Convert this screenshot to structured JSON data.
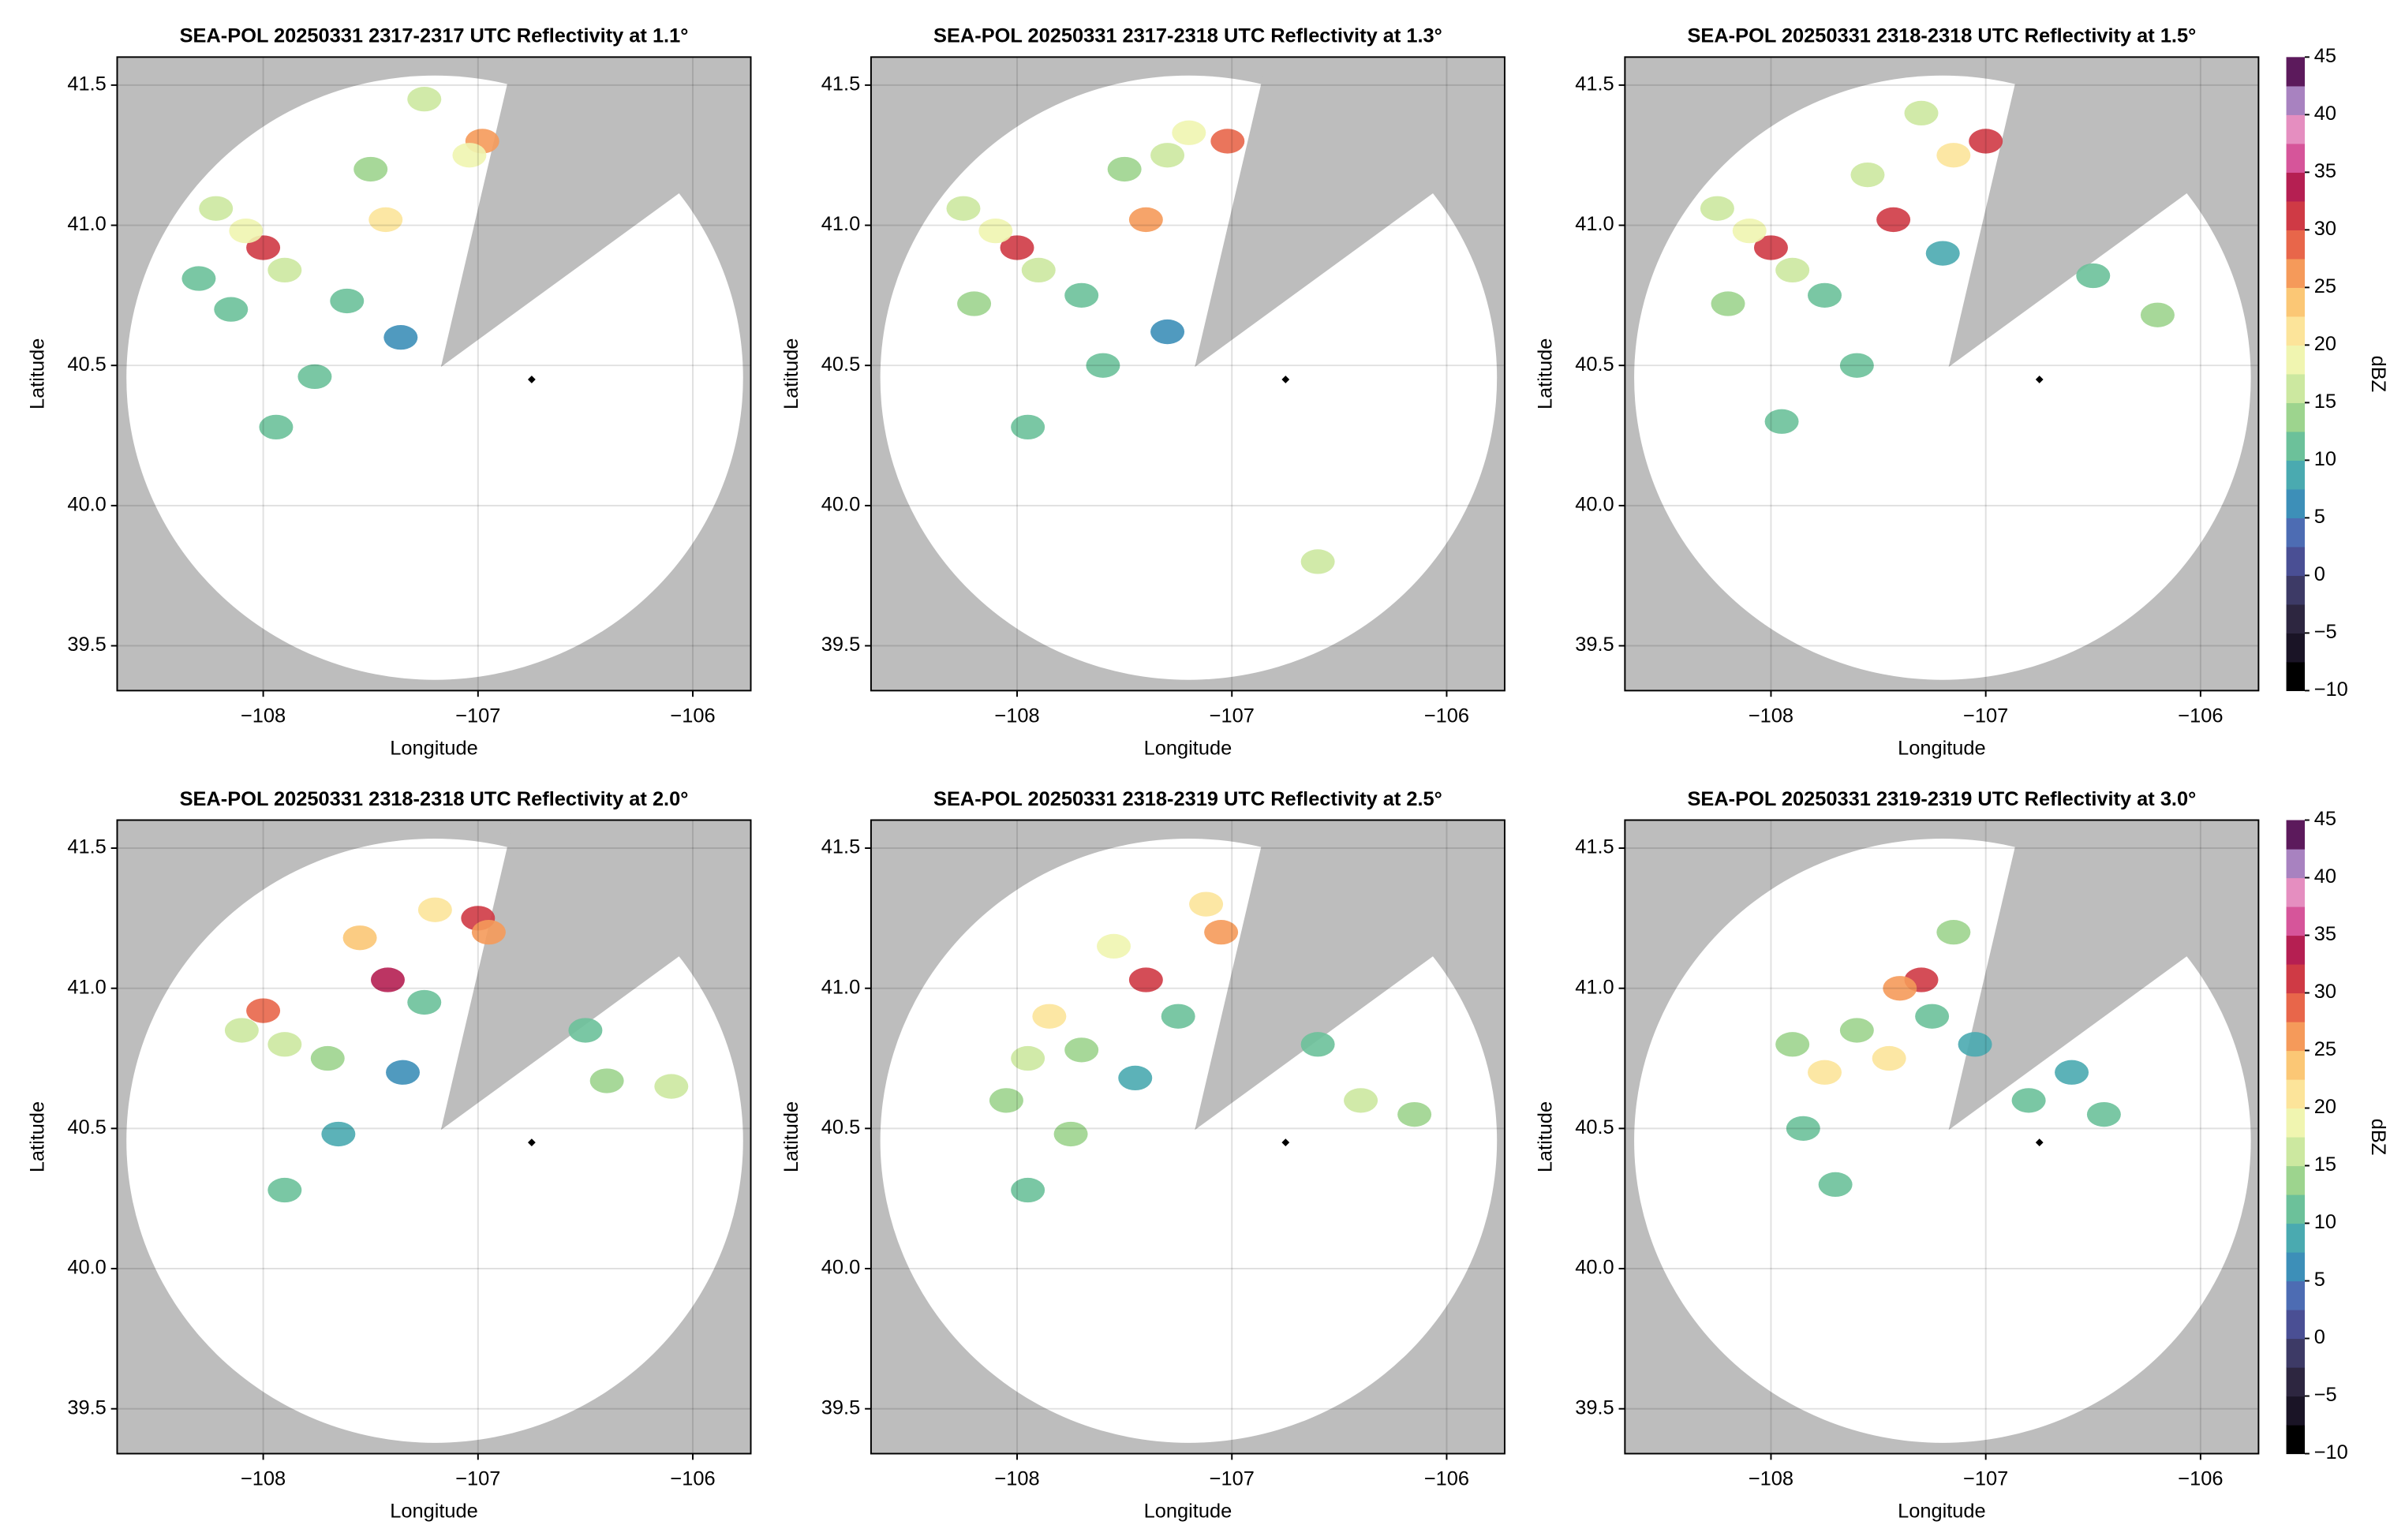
{
  "chart_data": [
    {
      "type": "radar",
      "title": "SEA-POL 20250331 2317-2317 UTC Reflectivity at 1.1°",
      "xlabel": "Longitude",
      "ylabel": "Latitude",
      "xlim": [
        -108.68,
        -105.73
      ],
      "ylim": [
        39.34,
        41.6
      ],
      "xticks": [
        {
          "value": -108,
          "label": "−108"
        },
        {
          "value": -107,
          "label": "−107"
        },
        {
          "value": -106,
          "label": "−106"
        }
      ],
      "yticks": [
        39.5,
        {
          "value": 40,
          "label": "40.0"
        },
        40.5,
        {
          "value": 41,
          "label": "41.0"
        },
        41.5
      ],
      "grid": true,
      "marker": {
        "lon": -106.75,
        "lat": 40.45
      },
      "cells": {
        "lon": [
          -108.0,
          -108.08,
          -108.22,
          -107.9,
          -108.3,
          -106.98,
          -107.04,
          -107.25,
          -107.43,
          -107.5,
          -107.76,
          -107.94,
          -107.36,
          -107.61,
          -108.15
        ],
        "lat": [
          40.92,
          40.98,
          41.06,
          40.84,
          40.81,
          41.3,
          41.25,
          41.45,
          41.02,
          41.2,
          40.46,
          40.28,
          40.6,
          40.73,
          40.7
        ],
        "dbz": [
          30,
          18,
          15,
          15,
          12,
          25,
          18,
          15,
          22,
          14,
          10,
          12,
          5,
          10,
          11
        ]
      }
    },
    {
      "type": "radar",
      "title": "SEA-POL 20250331 2317-2318 UTC Reflectivity at 1.3°",
      "xlabel": "Longitude",
      "ylabel": "Latitude",
      "xlim": [
        -108.68,
        -105.73
      ],
      "ylim": [
        39.34,
        41.6
      ],
      "xticks": [
        {
          "value": -108,
          "label": "−108"
        },
        {
          "value": -107,
          "label": "−107"
        },
        {
          "value": -106,
          "label": "−106"
        }
      ],
      "yticks": [
        39.5,
        {
          "value": 40,
          "label": "40.0"
        },
        40.5,
        {
          "value": 41,
          "label": "41.0"
        },
        41.5
      ],
      "grid": true,
      "marker": {
        "lon": -106.75,
        "lat": 40.45
      },
      "cells": {
        "lon": [
          -108.0,
          -108.1,
          -108.25,
          -107.9,
          -107.02,
          -107.2,
          -107.3,
          -107.4,
          -107.5,
          -107.7,
          -107.95,
          -107.6,
          -107.3,
          -106.6,
          -108.2
        ],
        "lat": [
          40.92,
          40.98,
          41.06,
          40.84,
          41.3,
          41.33,
          41.25,
          41.02,
          41.2,
          40.75,
          40.28,
          40.5,
          40.62,
          39.8,
          40.72
        ],
        "dbz": [
          30,
          18,
          15,
          16,
          28,
          18,
          17,
          26,
          14,
          11,
          12,
          10,
          6,
          15,
          13
        ]
      }
    },
    {
      "type": "radar",
      "title": "SEA-POL 20250331 2318-2318 UTC Reflectivity at 1.5°",
      "xlabel": "Longitude",
      "ylabel": "Latitude",
      "xlim": [
        -108.68,
        -105.73
      ],
      "ylim": [
        39.34,
        41.6
      ],
      "xticks": [
        {
          "value": -108,
          "label": "−108"
        },
        {
          "value": -107,
          "label": "−107"
        },
        {
          "value": -106,
          "label": "−106"
        }
      ],
      "yticks": [
        39.5,
        {
          "value": 40,
          "label": "40.0"
        },
        40.5,
        {
          "value": 41,
          "label": "41.0"
        },
        41.5
      ],
      "grid": true,
      "marker": {
        "lon": -106.75,
        "lat": 40.45
      },
      "cells": {
        "lon": [
          -108.0,
          -108.1,
          -108.25,
          -107.9,
          -107.0,
          -107.15,
          -107.3,
          -107.43,
          -107.55,
          -107.75,
          -107.95,
          -107.6,
          -106.2,
          -106.5,
          -108.2,
          -107.2
        ],
        "lat": [
          40.92,
          40.98,
          41.06,
          40.84,
          41.3,
          41.25,
          41.4,
          41.02,
          41.18,
          40.75,
          40.3,
          40.5,
          40.68,
          40.82,
          40.72,
          40.9
        ],
        "dbz": [
          30,
          18,
          15,
          16,
          30,
          22,
          17,
          32,
          15,
          11,
          12,
          10,
          14,
          12,
          13,
          9
        ]
      },
      "colorbar": {
        "label": "dBZ",
        "lim": [
          -10,
          45
        ],
        "ticks": [
          {
            "value": -10,
            "label": "−10"
          },
          {
            "value": -5,
            "label": "−5"
          },
          0,
          5,
          10,
          15,
          20,
          25,
          30,
          35,
          40,
          45
        ],
        "colors": [
          "#000000",
          "#1a1426",
          "#2d2640",
          "#3d3a66",
          "#4a4f94",
          "#4d6cb3",
          "#3d8fb8",
          "#4aaab0",
          "#6cc19a",
          "#9dd48e",
          "#cce8a0",
          "#f0f5b0",
          "#fce49a",
          "#fbc775",
          "#f59a5a",
          "#e8664a",
          "#cf3a45",
          "#b51f52",
          "#d6559a",
          "#e58ec0",
          "#a882c0",
          "#5c1a5c"
        ]
      }
    },
    {
      "type": "radar",
      "title": "SEA-POL 20250331 2318-2318 UTC Reflectivity at 2.0°",
      "xlabel": "Longitude",
      "ylabel": "Latitude",
      "xlim": [
        -108.68,
        -105.73
      ],
      "ylim": [
        39.34,
        41.6
      ],
      "xticks": [
        {
          "value": -108,
          "label": "−108"
        },
        {
          "value": -107,
          "label": "−107"
        },
        {
          "value": -106,
          "label": "−106"
        }
      ],
      "yticks": [
        39.5,
        {
          "value": 40,
          "label": "40.0"
        },
        40.5,
        {
          "value": 41,
          "label": "41.0"
        },
        41.5
      ],
      "grid": true,
      "marker": {
        "lon": -106.75,
        "lat": 40.45
      },
      "cells": {
        "lon": [
          -107.0,
          -106.95,
          -107.2,
          -107.42,
          -107.55,
          -108.0,
          -107.9,
          -108.1,
          -107.7,
          -106.4,
          -106.1,
          -106.5,
          -107.9,
          -107.65,
          -107.35,
          -107.25
        ],
        "lat": [
          41.25,
          41.2,
          41.28,
          41.03,
          41.18,
          40.92,
          40.8,
          40.85,
          40.75,
          40.67,
          40.65,
          40.85,
          40.28,
          40.48,
          40.7,
          40.95
        ],
        "dbz": [
          30,
          26,
          22,
          33,
          24,
          28,
          17,
          17,
          14,
          14,
          15,
          12,
          11,
          9,
          6,
          12
        ]
      }
    },
    {
      "type": "radar",
      "title": "SEA-POL 20250331 2318-2319 UTC Reflectivity at 2.5°",
      "xlabel": "Longitude",
      "ylabel": "Latitude",
      "xlim": [
        -108.68,
        -105.73
      ],
      "ylim": [
        39.34,
        41.6
      ],
      "xticks": [
        {
          "value": -108,
          "label": "−108"
        },
        {
          "value": -107,
          "label": "−107"
        },
        {
          "value": -106,
          "label": "−106"
        }
      ],
      "yticks": [
        39.5,
        {
          "value": 40,
          "label": "40.0"
        },
        40.5,
        {
          "value": 41,
          "label": "41.0"
        },
        41.5
      ],
      "grid": true,
      "marker": {
        "lon": -106.75,
        "lat": 40.45
      },
      "cells": {
        "lon": [
          -107.05,
          -107.12,
          -107.4,
          -107.55,
          -107.85,
          -107.95,
          -108.05,
          -107.7,
          -106.4,
          -106.15,
          -106.6,
          -107.95,
          -107.75,
          -107.45,
          -107.25
        ],
        "lat": [
          41.2,
          41.3,
          41.03,
          41.15,
          40.9,
          40.75,
          40.6,
          40.78,
          40.6,
          40.55,
          40.8,
          40.28,
          40.48,
          40.68,
          40.9
        ],
        "dbz": [
          27,
          22,
          32,
          18,
          20,
          16,
          14,
          13,
          15,
          14,
          12,
          11,
          13,
          8,
          12
        ]
      }
    },
    {
      "type": "radar",
      "title": "SEA-POL 20250331 2319-2319 UTC Reflectivity at 3.0°",
      "xlabel": "Longitude",
      "ylabel": "Latitude",
      "xlim": [
        -108.68,
        -105.73
      ],
      "ylim": [
        39.34,
        41.6
      ],
      "xticks": [
        {
          "value": -108,
          "label": "−108"
        },
        {
          "value": -107,
          "label": "−107"
        },
        {
          "value": -106,
          "label": "−106"
        }
      ],
      "yticks": [
        39.5,
        {
          "value": 40,
          "label": "40.0"
        },
        40.5,
        {
          "value": 41,
          "label": "41.0"
        },
        41.5
      ],
      "grid": true,
      "marker": {
        "lon": -106.75,
        "lat": 40.45
      },
      "cells": {
        "lon": [
          -107.3,
          -107.4,
          -107.15,
          -107.75,
          -107.9,
          -107.6,
          -107.45,
          -107.85,
          -107.7,
          -106.8,
          -106.6,
          -106.45,
          -107.05,
          -107.25
        ],
        "lat": [
          41.03,
          41.0,
          41.2,
          40.7,
          40.8,
          40.85,
          40.75,
          40.5,
          40.3,
          40.6,
          40.7,
          40.55,
          40.8,
          40.9
        ],
        "dbz": [
          32,
          26,
          14,
          20,
          14,
          14,
          22,
          12,
          12,
          10,
          9,
          11,
          8,
          10
        ]
      },
      "colorbar": {
        "label": "dBZ",
        "lim": [
          -10,
          45
        ],
        "ticks": [
          {
            "value": -10,
            "label": "−10"
          },
          {
            "value": -5,
            "label": "−5"
          },
          0,
          5,
          10,
          15,
          20,
          25,
          30,
          35,
          40,
          45
        ],
        "colors": [
          "#000000",
          "#1a1426",
          "#2d2640",
          "#3d3a66",
          "#4a4f94",
          "#4d6cb3",
          "#3d8fb8",
          "#4aaab0",
          "#6cc19a",
          "#9dd48e",
          "#cce8a0",
          "#f0f5b0",
          "#fce49a",
          "#fbc775",
          "#f59a5a",
          "#e8664a",
          "#cf3a45",
          "#b51f52",
          "#d6559a",
          "#e58ec0",
          "#a882c0",
          "#5c1a5c"
        ]
      }
    }
  ]
}
